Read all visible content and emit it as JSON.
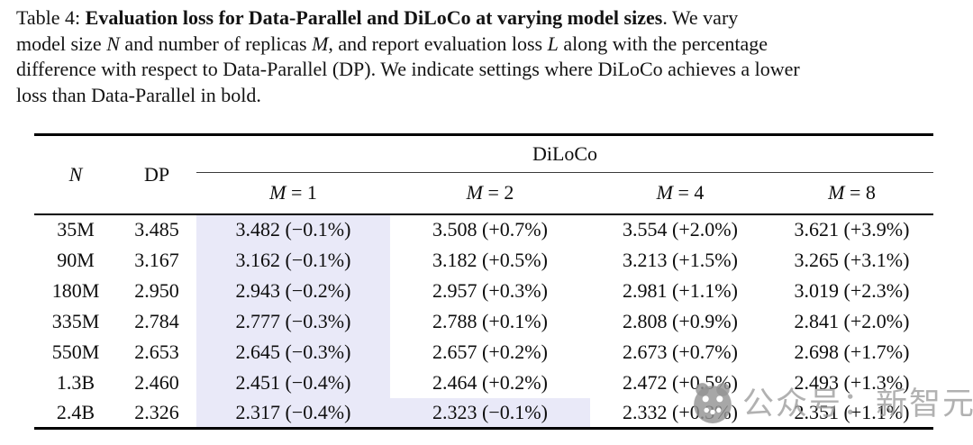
{
  "caption": {
    "lines": [
      {
        "segments": [
          {
            "t": "Table 4: "
          },
          {
            "t": "Evaluation loss for Data-Parallel and DiLoCo at varying model sizes",
            "b": true
          },
          {
            "t": ". We vary"
          }
        ]
      },
      {
        "segments": [
          {
            "t": "model size "
          },
          {
            "t": "N",
            "i": true
          },
          {
            "t": " and number of replicas "
          },
          {
            "t": "M",
            "i": true
          },
          {
            "t": ", and report evaluation loss "
          },
          {
            "t": "L",
            "i": true
          },
          {
            "t": " along with the percentage"
          }
        ]
      },
      {
        "segments": [
          {
            "t": "difference with respect to Data-Parallel (DP). We indicate settings where DiLoCo achieves a lower"
          }
        ]
      },
      {
        "segments": [
          {
            "t": "loss than Data-Parallel in bold."
          }
        ]
      }
    ]
  },
  "table": {
    "col_n": "N",
    "col_dp": "DP",
    "group_header": "DiLoCo",
    "sub_headers": [
      {
        "var": "M",
        "rest": " = 1"
      },
      {
        "var": "M",
        "rest": " = 2"
      },
      {
        "var": "M",
        "rest": " = 4"
      },
      {
        "var": "M",
        "rest": " = 8"
      }
    ],
    "rows": [
      {
        "n": "35M",
        "dp": "3.485",
        "diloco": [
          {
            "text": "3.482 (−0.1%)",
            "bold": true,
            "highlight": true
          },
          {
            "text": "3.508 (+0.7%)",
            "bold": false,
            "highlight": false
          },
          {
            "text": "3.554 (+2.0%)",
            "bold": false,
            "highlight": false
          },
          {
            "text": "3.621 (+3.9%)",
            "bold": false,
            "highlight": false
          }
        ]
      },
      {
        "n": "90M",
        "dp": "3.167",
        "diloco": [
          {
            "text": "3.162 (−0.1%)",
            "bold": true,
            "highlight": true
          },
          {
            "text": "3.182 (+0.5%)",
            "bold": false,
            "highlight": false
          },
          {
            "text": "3.213 (+1.5%)",
            "bold": false,
            "highlight": false
          },
          {
            "text": "3.265 (+3.1%)",
            "bold": false,
            "highlight": false
          }
        ]
      },
      {
        "n": "180M",
        "dp": "2.950",
        "diloco": [
          {
            "text": "2.943 (−0.2%)",
            "bold": true,
            "highlight": true
          },
          {
            "text": "2.957 (+0.3%)",
            "bold": false,
            "highlight": false
          },
          {
            "text": "2.981 (+1.1%)",
            "bold": false,
            "highlight": false
          },
          {
            "text": "3.019 (+2.3%)",
            "bold": false,
            "highlight": false
          }
        ]
      },
      {
        "n": "335M",
        "dp": "2.784",
        "diloco": [
          {
            "text": "2.777 (−0.3%)",
            "bold": true,
            "highlight": true
          },
          {
            "text": "2.788 (+0.1%)",
            "bold": false,
            "highlight": false
          },
          {
            "text": "2.808 (+0.9%)",
            "bold": false,
            "highlight": false
          },
          {
            "text": "2.841 (+2.0%)",
            "bold": false,
            "highlight": false
          }
        ]
      },
      {
        "n": "550M",
        "dp": "2.653",
        "diloco": [
          {
            "text": "2.645 (−0.3%)",
            "bold": true,
            "highlight": true
          },
          {
            "text": "2.657 (+0.2%)",
            "bold": false,
            "highlight": false
          },
          {
            "text": "2.673 (+0.7%)",
            "bold": false,
            "highlight": false
          },
          {
            "text": "2.698 (+1.7%)",
            "bold": false,
            "highlight": false
          }
        ]
      },
      {
        "n": "1.3B",
        "dp": "2.460",
        "diloco": [
          {
            "text": "2.451 (−0.4%)",
            "bold": true,
            "highlight": true
          },
          {
            "text": "2.464 (+0.2%)",
            "bold": false,
            "highlight": false
          },
          {
            "text": "2.472 (+0.5%)",
            "bold": false,
            "highlight": false
          },
          {
            "text": "2.493 (+1.3%)",
            "bold": false,
            "highlight": false
          }
        ]
      },
      {
        "n": "2.4B",
        "dp": "2.326",
        "diloco": [
          {
            "text": "2.317 (−0.4%)",
            "bold": true,
            "highlight": true
          },
          {
            "text": "2.323 (−0.1%)",
            "bold": true,
            "highlight": true
          },
          {
            "text": "2.332 (+0.3%)",
            "bold": false,
            "highlight": false
          },
          {
            "text": "2.351 (+1.1%)",
            "bold": false,
            "highlight": false
          }
        ]
      }
    ]
  },
  "watermark": {
    "text": "公众号：新智元",
    "logo": "panda-logo-icon"
  },
  "colors": {
    "highlight": "#e9e9f8",
    "rule": "#000000",
    "watermark_gray": "#9e9e9e"
  }
}
